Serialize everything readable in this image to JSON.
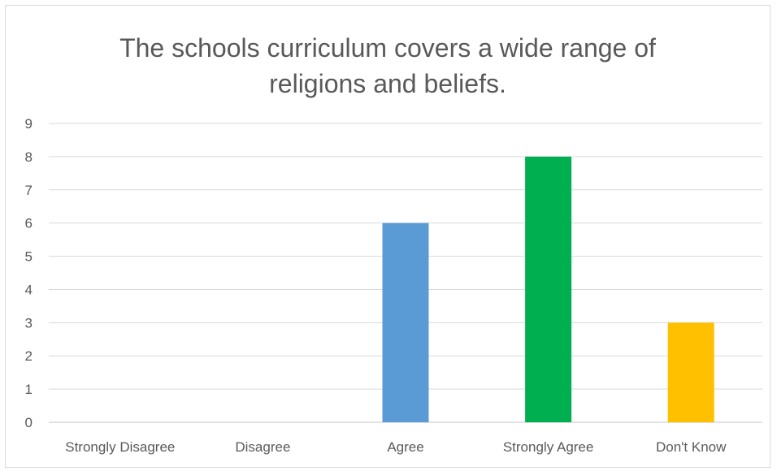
{
  "chart_data": {
    "type": "bar",
    "title_lines": [
      "The schools curriculum covers a wide range of",
      "religions and beliefs."
    ],
    "categories": [
      "Strongly Disagree",
      "Disagree",
      "Agree",
      "Strongly Agree",
      "Don't Know"
    ],
    "values": [
      0,
      0,
      6,
      8,
      3
    ],
    "colors": [
      "#5b9bd5",
      "#5b9bd5",
      "#5b9bd5",
      "#00b050",
      "#ffc000"
    ],
    "ylim": [
      0,
      9
    ],
    "yticks": [
      "0",
      "1",
      "2",
      "3",
      "4",
      "5",
      "6",
      "7",
      "8",
      "9"
    ],
    "grid": true,
    "gridColor": "#d9d9d9"
  }
}
